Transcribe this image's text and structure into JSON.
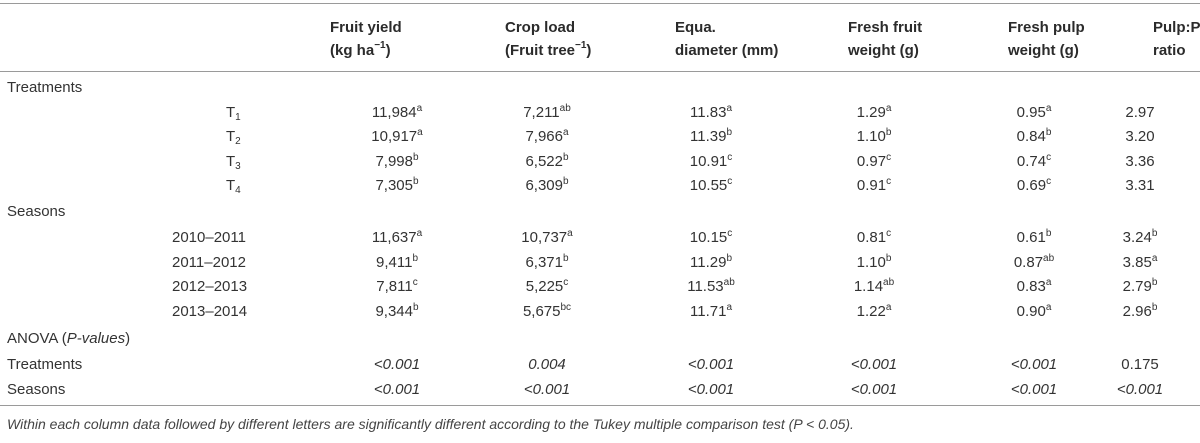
{
  "headers": [
    {
      "line1": "Fruit yield",
      "line2a": "(kg ha",
      "line2sup": "−1",
      "line2b": ")"
    },
    {
      "line1": "Crop load",
      "line2a": "(Fruit tree",
      "line2sup": "−1",
      "line2b": ")"
    },
    {
      "line1": "Equa.",
      "line2a": "diameter (mm)",
      "line2sup": "",
      "line2b": ""
    },
    {
      "line1": "Fresh fruit",
      "line2a": "weight (g)",
      "line2sup": "",
      "line2b": ""
    },
    {
      "line1": "Fresh pulp",
      "line2a": "weight (g)",
      "line2sup": "",
      "line2b": ""
    },
    {
      "line1": "Pulp:Pit",
      "line2a": "ratio",
      "line2sup": "",
      "line2b": ""
    }
  ],
  "sections": {
    "treatments": "Treatments",
    "seasons": "Seasons",
    "anova": "ANOVA (",
    "anova_italic": "P-values",
    "anova_close": ")"
  },
  "treatment_rows": [
    {
      "label": "T",
      "sub": "1",
      "cells": [
        [
          "11,984",
          "a"
        ],
        [
          "7,211",
          "ab"
        ],
        [
          "11.83",
          "a"
        ],
        [
          "1.29",
          "a"
        ],
        [
          "0.95",
          "a"
        ],
        [
          "2.97",
          ""
        ]
      ]
    },
    {
      "label": "T",
      "sub": "2",
      "cells": [
        [
          "10,917",
          "a"
        ],
        [
          "7,966",
          "a"
        ],
        [
          "11.39",
          "b"
        ],
        [
          "1.10",
          "b"
        ],
        [
          "0.84",
          "b"
        ],
        [
          "3.20",
          ""
        ]
      ]
    },
    {
      "label": "T",
      "sub": "3",
      "cells": [
        [
          "7,998",
          "b"
        ],
        [
          "6,522",
          "b"
        ],
        [
          "10.91",
          "c"
        ],
        [
          "0.97",
          "c"
        ],
        [
          "0.74",
          "c"
        ],
        [
          "3.36",
          ""
        ]
      ]
    },
    {
      "label": "T",
      "sub": "4",
      "cells": [
        [
          "7,305",
          "b"
        ],
        [
          "6,309",
          "b"
        ],
        [
          "10.55",
          "c"
        ],
        [
          "0.91",
          "c"
        ],
        [
          "0.69",
          "c"
        ],
        [
          "3.31",
          ""
        ]
      ]
    }
  ],
  "season_rows": [
    {
      "label": "2010–2011",
      "cells": [
        [
          "11,637",
          "a"
        ],
        [
          "10,737",
          "a"
        ],
        [
          "10.15",
          "c"
        ],
        [
          "0.81",
          "c"
        ],
        [
          "0.61",
          "b"
        ],
        [
          "3.24",
          "b"
        ]
      ]
    },
    {
      "label": "2011–2012",
      "cells": [
        [
          "9,411",
          "b"
        ],
        [
          "6,371",
          "b"
        ],
        [
          "11.29",
          "b"
        ],
        [
          "1.10",
          "b"
        ],
        [
          "0.87",
          "ab"
        ],
        [
          "3.85",
          "a"
        ]
      ]
    },
    {
      "label": "2012–2013",
      "cells": [
        [
          "7,811",
          "c"
        ],
        [
          "5,225",
          "c"
        ],
        [
          "11.53",
          "ab"
        ],
        [
          "1.14",
          "ab"
        ],
        [
          "0.83",
          "a"
        ],
        [
          "2.79",
          "b"
        ]
      ]
    },
    {
      "label": "2013–2014",
      "cells": [
        [
          "9,344",
          "b"
        ],
        [
          "5,675",
          "bc"
        ],
        [
          "11.71",
          "a"
        ],
        [
          "1.22",
          "a"
        ],
        [
          "0.90",
          "a"
        ],
        [
          "2.96",
          "b"
        ]
      ]
    }
  ],
  "anova_rows": [
    {
      "label": "Treatments",
      "cells": [
        [
          "<0.001",
          true
        ],
        [
          "0.004",
          true
        ],
        [
          "<0.001",
          true
        ],
        [
          "<0.001",
          true
        ],
        [
          "<0.001",
          true
        ],
        [
          "0.175",
          false
        ]
      ]
    },
    {
      "label": "Seasons",
      "cells": [
        [
          "<0.001",
          true
        ],
        [
          "<0.001",
          true
        ],
        [
          "<0.001",
          true
        ],
        [
          "<0.001",
          true
        ],
        [
          "<0.001",
          true
        ],
        [
          "<0.001",
          true
        ]
      ]
    }
  ],
  "footnote": "Within each column data followed by different letters are significantly different according to the Tukey multiple comparison test (P < 0.05)."
}
